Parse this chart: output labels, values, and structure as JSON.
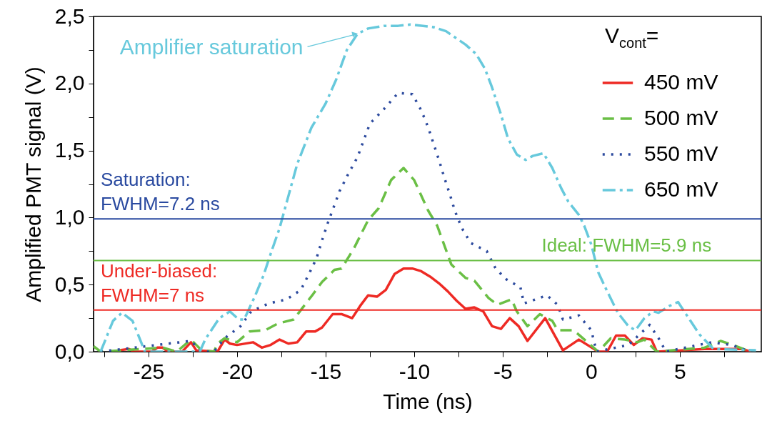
{
  "chart_data": {
    "type": "line",
    "xlabel": "Time (ns)",
    "ylabel": "Amplified PMT signal (V)",
    "legend_title": "V$_{cont}$=",
    "legend": "top right",
    "grid": false,
    "xlim": [
      -28.1,
      9.6
    ],
    "xticks": [
      {
        "value": -27.5,
        "label": null
      },
      -25,
      {
        "value": -22.5,
        "label": null
      },
      -20,
      {
        "value": -17.5,
        "label": null
      },
      -15,
      {
        "value": -12.5,
        "label": null
      },
      -10,
      {
        "value": -7.5,
        "label": null
      },
      -5,
      {
        "value": -2.5,
        "label": null
      },
      0,
      {
        "value": 2.5,
        "label": null
      },
      5,
      {
        "value": 7.5,
        "label": null
      }
    ],
    "ylim": [
      0,
      2.5
    ],
    "yticks": [
      {
        "value": 0,
        "label": "0,0"
      },
      {
        "value": 0.25,
        "label": null
      },
      {
        "value": 0.5,
        "label": "0,5"
      },
      {
        "value": 0.75,
        "label": null
      },
      {
        "value": 1,
        "label": "1,0"
      },
      {
        "value": 1.25,
        "label": null
      },
      {
        "value": 1.5,
        "label": "1,5"
      },
      {
        "value": 1.75,
        "label": null
      },
      {
        "value": 2,
        "label": "2,0"
      },
      {
        "value": 2.25,
        "label": null
      },
      {
        "value": 2.5,
        "label": "2,5"
      }
    ],
    "series": [
      {
        "name": "450 mV",
        "color": "#ee2a24",
        "line_style": "solid",
        "x": [
          -26.7,
          -26.1,
          -25.8,
          -24.8,
          -24.5,
          -24.2,
          -23.9,
          -23.1,
          -22.6,
          -22.3,
          -21.1,
          -20.7,
          -20.4,
          -20.0,
          -19.1,
          -18.6,
          -18.1,
          -17.6,
          -17.1,
          -16.6,
          -16.1,
          -15.6,
          -15.2,
          -14.6,
          -14.1,
          -13.5,
          -13.0,
          -12.6,
          -12.1,
          -11.6,
          -11.1,
          -10.6,
          -10.1,
          -9.6,
          -9.1,
          -8.6,
          -8.1,
          -7.6,
          -7.1,
          -6.6,
          -6.1,
          -5.6,
          -5.1,
          -4.6,
          -4.1,
          -3.6,
          -2.6,
          -1.6,
          -0.7,
          0.4,
          0.9,
          1.4,
          1.9,
          2.4,
          2.9,
          3.4,
          3.7,
          5.1,
          6.4,
          7.7,
          8.5,
          9.0
        ],
        "values": [
          0.01,
          0.02,
          0,
          0,
          0.03,
          0.03,
          0,
          0,
          0.07,
          0.01,
          0,
          0.09,
          0.06,
          0.05,
          0.07,
          0.03,
          0.05,
          0.09,
          0.06,
          0.07,
          0.15,
          0.15,
          0.18,
          0.28,
          0.28,
          0.25,
          0.35,
          0.42,
          0.41,
          0.46,
          0.58,
          0.62,
          0.62,
          0.6,
          0.56,
          0.51,
          0.45,
          0.38,
          0.32,
          0.33,
          0.3,
          0.19,
          0.17,
          0.25,
          0.19,
          0.08,
          0.25,
          0.01,
          0.09,
          0,
          0,
          0.12,
          0.12,
          0.05,
          0.1,
          0.09,
          0,
          0.01,
          0.02,
          0.02,
          0.02,
          0
        ]
      },
      {
        "name": "500 mV",
        "color": "#6abf45",
        "line_style": "dashed",
        "x": [
          -28.1,
          -27.7,
          -24.2,
          -23.4,
          -22.6,
          -22.0,
          -21.3,
          -21.1,
          -20.7,
          -20.0,
          -19.3,
          -18.4,
          -17.7,
          -16.8,
          -16.4,
          -15.7,
          -15.2,
          -14.5,
          -14.1,
          -13.4,
          -12.6,
          -12.0,
          -11.3,
          -10.6,
          -10.0,
          -9.2,
          -8.7,
          -7.9,
          -7.1,
          -6.6,
          -5.8,
          -5.3,
          -4.5,
          -4.2,
          -3.6,
          -2.9,
          -2.2,
          -1.9,
          -1.0,
          -0.3,
          0.4,
          1.1,
          1.9,
          2.6,
          3.0,
          3.7,
          6.4,
          7.3,
          8.0,
          9.0
        ],
        "values": [
          0.04,
          0,
          0.03,
          0,
          0.09,
          0.01,
          0,
          0.06,
          0.1,
          0.07,
          0.15,
          0.16,
          0.21,
          0.24,
          0.31,
          0.43,
          0.52,
          0.61,
          0.62,
          0.77,
          0.98,
          1.07,
          1.28,
          1.37,
          1.28,
          1.05,
          0.94,
          0.65,
          0.55,
          0.53,
          0.4,
          0.35,
          0.39,
          0.3,
          0.19,
          0.28,
          0.23,
          0.16,
          0.16,
          0.08,
          0,
          0.1,
          0.09,
          0.07,
          0.09,
          0,
          0.03,
          0.08,
          0.05,
          0
        ]
      },
      {
        "name": "550 mV",
        "color": "#2c4a9e",
        "line_style": "dotted",
        "x": [
          -27.7,
          -22.6,
          -22.0,
          -21.3,
          -20.7,
          -19.8,
          -19.2,
          -18.2,
          -17.2,
          -16.4,
          -15.9,
          -15.5,
          -15.2,
          -14.9,
          -14.2,
          -13.7,
          -13.2,
          -12.5,
          -11.7,
          -10.9,
          -10.1,
          -9.6,
          -9.2,
          -8.6,
          -8.3,
          -8.0,
          -7.7,
          -7.3,
          -6.8,
          -5.9,
          -5.4,
          -4.8,
          -4.0,
          -3.8,
          -2.5,
          -1.9,
          -1.6,
          -0.7,
          0.0,
          0.3,
          2.1,
          3.3,
          3.9,
          4.2,
          6.8,
          7.9,
          9.0
        ],
        "values": [
          0,
          0.08,
          0,
          0,
          0.1,
          0.19,
          0.3,
          0.36,
          0.39,
          0.46,
          0.59,
          0.7,
          0.83,
          0.95,
          1.2,
          1.33,
          1.45,
          1.7,
          1.81,
          1.93,
          1.92,
          1.8,
          1.67,
          1.43,
          1.3,
          1.18,
          1.05,
          0.92,
          0.81,
          0.75,
          0.62,
          0.54,
          0.48,
          0.36,
          0.42,
          0.35,
          0.24,
          0.27,
          0.16,
          0,
          0.05,
          0.2,
          0.08,
          0,
          0.07,
          0.05,
          0
        ]
      },
      {
        "name": "650 mV",
        "color": "#67c9dc",
        "line_style": "dashdot",
        "x": [
          -27.7,
          -27.0,
          -26.5,
          -25.9,
          -25.2,
          -22.1,
          -21.8,
          -21.0,
          -20.4,
          -19.9,
          -19.6,
          -19.0,
          -18.5,
          -18.1,
          -17.6,
          -17.1,
          -16.6,
          -15.8,
          -15.0,
          -14.4,
          -13.8,
          -13.2,
          -12.6,
          -11.7,
          -10.9,
          -10.2,
          -8.9,
          -8.2,
          -7.1,
          -6.5,
          -6.0,
          -5.6,
          -5.1,
          -4.7,
          -4.2,
          -3.7,
          -3.3,
          -2.7,
          -2.2,
          -1.7,
          -1.3,
          -0.7,
          -0.4,
          0.0,
          0.4,
          0.9,
          1.5,
          2.1,
          2.5,
          3.0,
          3.5,
          3.8,
          4.4,
          4.9,
          5.4,
          6.1,
          6.9,
          9.3
        ],
        "values": [
          0,
          0.23,
          0.29,
          0.23,
          0,
          0,
          0.09,
          0.25,
          0.3,
          0.24,
          0.24,
          0.41,
          0.57,
          0.73,
          0.92,
          1.16,
          1.4,
          1.67,
          1.85,
          2.03,
          2.25,
          2.37,
          2.41,
          2.43,
          2.43,
          2.44,
          2.42,
          2.39,
          2.29,
          2.22,
          2.11,
          1.97,
          1.77,
          1.59,
          1.47,
          1.43,
          1.46,
          1.48,
          1.37,
          1.22,
          1.12,
          1.02,
          0.94,
          0.8,
          0.59,
          0.45,
          0.29,
          0.19,
          0.16,
          0.25,
          0.3,
          0.29,
          0.34,
          0.37,
          0.27,
          0.13,
          0.02,
          0.01
        ]
      }
    ],
    "ref_lines": [
      {
        "axis": "y",
        "value": 0.99,
        "color": "#2a4aa0"
      },
      {
        "axis": "y",
        "value": 0.68,
        "color": "#6abf45"
      },
      {
        "axis": "y",
        "value": 0.31,
        "color": "#ee2a24"
      }
    ],
    "annotations": [
      {
        "text": "Amplifier saturation",
        "x": -13.2,
        "y": 2.37
      },
      {
        "text": "Saturation:\nFWHM=7.2 ns",
        "x": -27.7,
        "y": 0.99
      },
      {
        "text": "Ideal: FWHM=5.9 ns",
        "x": -2.8,
        "y": 0.68
      },
      {
        "text": "Under-biased:\nFWHM=7 ns",
        "x": -27.7,
        "y": 0.31
      }
    ]
  }
}
